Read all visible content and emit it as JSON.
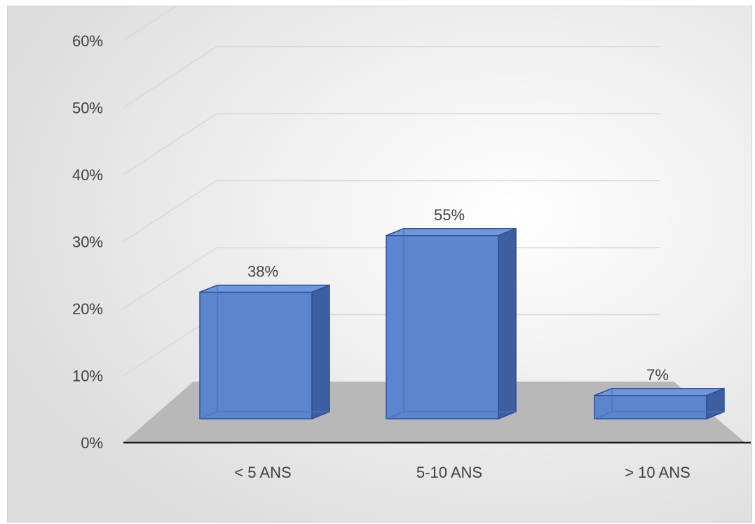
{
  "chart_data": {
    "type": "bar",
    "style": "3d-column",
    "categories": [
      "< 5 ANS",
      "5-10 ANS",
      "> 10 ANS"
    ],
    "values": [
      38,
      55,
      7
    ],
    "data_labels": [
      "38%",
      "55%",
      "7%"
    ],
    "ylim": [
      0,
      60
    ],
    "yticks": [
      0,
      10,
      20,
      30,
      40,
      50,
      60
    ],
    "ytick_labels": [
      "0%",
      "10%",
      "20%",
      "30%",
      "40%",
      "50%",
      "60%"
    ],
    "grid": true,
    "legend": "none",
    "colors": {
      "bar_front": "#5b85cf",
      "bar_side": "#3b5fa0",
      "bar_top": "#6e97dc",
      "bar_edge": "#2e4f94",
      "floor": "#b8b8b8",
      "gridline": "#d9d9d9",
      "axis": "#1a1a1a"
    }
  }
}
